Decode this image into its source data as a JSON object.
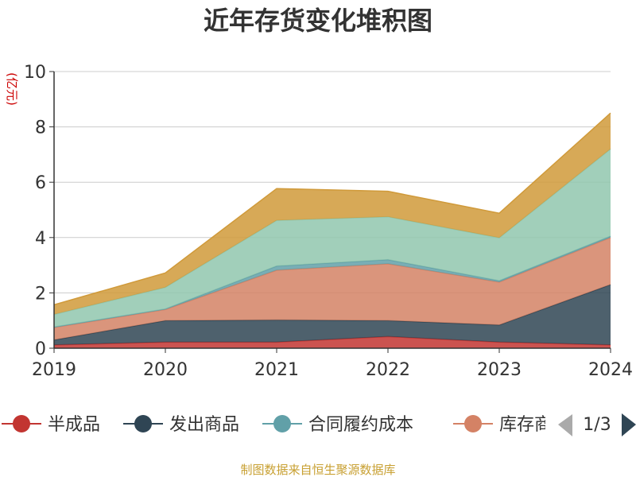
{
  "chart_data": {
    "type": "area",
    "stacked": true,
    "title": "近年存货变化堆积图",
    "ylabel": "(亿元)",
    "xlabel": "",
    "ylim": [
      0,
      10
    ],
    "yticks": [
      0,
      2,
      4,
      6,
      8,
      10
    ],
    "grid": true,
    "legend_position": "bottom",
    "categories": [
      "2019",
      "2020",
      "2021",
      "2022",
      "2023",
      "2024"
    ],
    "series": [
      {
        "name": "半成品",
        "color": "#c23531",
        "values": [
          0.12,
          0.22,
          0.22,
          0.42,
          0.22,
          0.12
        ]
      },
      {
        "name": "发出商品",
        "color": "#2f4554",
        "values": [
          0.18,
          0.78,
          0.8,
          0.58,
          0.62,
          2.18
        ]
      },
      {
        "name": "",
        "color": "#d48265",
        "values": [
          0.45,
          0.4,
          1.8,
          2.05,
          1.55,
          1.7
        ]
      },
      {
        "name": "合同履约成本",
        "color": "#61a0a8",
        "values": [
          0.02,
          0.02,
          0.15,
          0.15,
          0.05,
          0.05
        ]
      },
      {
        "name": "",
        "color": "#91c7ae",
        "values": [
          0.45,
          0.78,
          1.65,
          1.55,
          1.55,
          3.15
        ]
      },
      {
        "name": "",
        "color": "#d09a3a",
        "values": [
          0.35,
          0.52,
          1.15,
          0.92,
          0.89,
          1.3
        ]
      }
    ]
  },
  "legend": {
    "items": [
      {
        "label": "半成品",
        "color": "#c23531"
      },
      {
        "label": "发出商品",
        "color": "#2f4554"
      },
      {
        "label": "合同履约成本",
        "color": "#61a0a8"
      },
      {
        "label": "库存商",
        "color": "#d48265"
      }
    ],
    "page_indicator": "1/3"
  },
  "source_note": "制图数据来自恒生聚源数据库"
}
